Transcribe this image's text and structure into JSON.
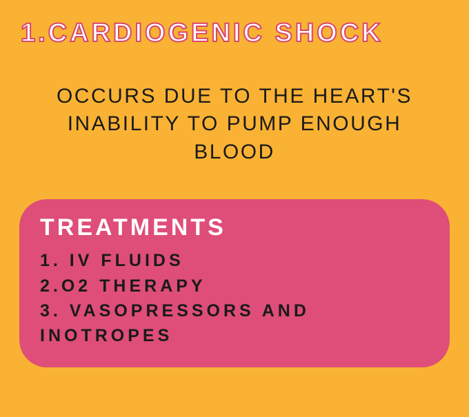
{
  "card": {
    "background_color": "#f9b233",
    "title": "1.CARDIOGENIC SHOCK",
    "title_color": "#ffffff",
    "title_stroke_color": "#d9466f",
    "title_fontsize": 38,
    "description": "OCCURS DUE TO THE HEART'S INABILITY TO PUMP ENOUGH BLOOD",
    "description_color": "#1a1a1a",
    "description_fontsize": 30
  },
  "treatments": {
    "box_color": "#de4e78",
    "title": "TREATMENTS",
    "title_color": "#ffffff",
    "title_fontsize": 34,
    "items_color": "#1a1a1a",
    "items_fontsize": 25,
    "item1": "1. IV FLUIDS",
    "item2": "2.O2 THERAPY",
    "item3": "3. VASOPRESSORS AND INOTROPES"
  }
}
